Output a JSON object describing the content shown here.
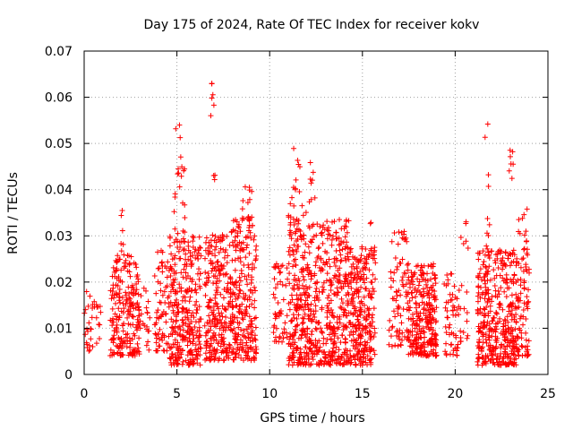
{
  "chart_data": {
    "type": "scatter",
    "title": "Day 175 of 2024, Rate Of TEC Index for receiver kokv",
    "xlabel": "GPS time / hours",
    "ylabel": "ROTI / TECUs",
    "xlim": [
      0,
      25
    ],
    "ylim": [
      0,
      0.07
    ],
    "x_ticks": [
      "0",
      "5",
      "10",
      "15",
      "20",
      "25"
    ],
    "x_tick_values": [
      0,
      5,
      10,
      15,
      20,
      25
    ],
    "y_ticks": [
      "0",
      "0.01",
      "0.02",
      "0.03",
      "0.04",
      "0.05",
      "0.06",
      "0.07"
    ],
    "y_tick_values": [
      0,
      0.01,
      0.02,
      0.03,
      0.04,
      0.05,
      0.06,
      0.07
    ],
    "grid": true,
    "marker": "+",
    "color": "#ff0000",
    "clusters": [
      {
        "x": [
          0.0,
          0.6
        ],
        "y": [
          0.005,
          0.019
        ],
        "n": 24
      },
      {
        "x": [
          0.6,
          0.9
        ],
        "y": [
          0.006,
          0.016
        ],
        "n": 10
      },
      {
        "x": [
          1.4,
          3.0
        ],
        "y": [
          0.004,
          0.026
        ],
        "n": 220
      },
      {
        "x": [
          1.8,
          2.2
        ],
        "y": [
          0.026,
          0.036
        ],
        "n": 6
      },
      {
        "x": [
          3.0,
          3.6
        ],
        "y": [
          0.005,
          0.02
        ],
        "n": 20
      },
      {
        "x": [
          3.8,
          4.6
        ],
        "y": [
          0.005,
          0.027
        ],
        "n": 70
      },
      {
        "x": [
          4.6,
          6.3
        ],
        "y": [
          0.002,
          0.03
        ],
        "n": 300
      },
      {
        "x": [
          4.8,
          5.5
        ],
        "y": [
          0.03,
          0.054
        ],
        "n": 22
      },
      {
        "x": [
          6.5,
          8.0
        ],
        "y": [
          0.003,
          0.031
        ],
        "n": 260
      },
      {
        "x": [
          6.8,
          7.0
        ],
        "y": [
          0.056,
          0.066
        ],
        "n": 6
      },
      {
        "x": [
          6.9,
          7.1
        ],
        "y": [
          0.042,
          0.044
        ],
        "n": 3
      },
      {
        "x": [
          8.0,
          9.3
        ],
        "y": [
          0.003,
          0.034
        ],
        "n": 230
      },
      {
        "x": [
          8.5,
          9.1
        ],
        "y": [
          0.034,
          0.043
        ],
        "n": 10
      },
      {
        "x": [
          10.2,
          11.0
        ],
        "y": [
          0.007,
          0.024
        ],
        "n": 50
      },
      {
        "x": [
          11.0,
          14.3
        ],
        "y": [
          0.002,
          0.034
        ],
        "n": 600
      },
      {
        "x": [
          11.0,
          12.5
        ],
        "y": [
          0.034,
          0.049
        ],
        "n": 26
      },
      {
        "x": [
          14.3,
          15.7
        ],
        "y": [
          0.002,
          0.028
        ],
        "n": 260
      },
      {
        "x": [
          15.3,
          15.5
        ],
        "y": [
          0.032,
          0.034
        ],
        "n": 2
      },
      {
        "x": [
          16.4,
          17.4
        ],
        "y": [
          0.006,
          0.031
        ],
        "n": 70
      },
      {
        "x": [
          17.4,
          19.0
        ],
        "y": [
          0.004,
          0.024
        ],
        "n": 280
      },
      {
        "x": [
          19.4,
          20.3
        ],
        "y": [
          0.004,
          0.022
        ],
        "n": 60
      },
      {
        "x": [
          20.3,
          20.7
        ],
        "y": [
          0.007,
          0.034
        ],
        "n": 15
      },
      {
        "x": [
          21.2,
          23.3
        ],
        "y": [
          0.002,
          0.027
        ],
        "n": 380
      },
      {
        "x": [
          21.6,
          21.9
        ],
        "y": [
          0.027,
          0.055
        ],
        "n": 10
      },
      {
        "x": [
          22.9,
          23.2
        ],
        "y": [
          0.042,
          0.049
        ],
        "n": 7
      },
      {
        "x": [
          23.3,
          24.0
        ],
        "y": [
          0.004,
          0.036
        ],
        "n": 90
      }
    ]
  }
}
